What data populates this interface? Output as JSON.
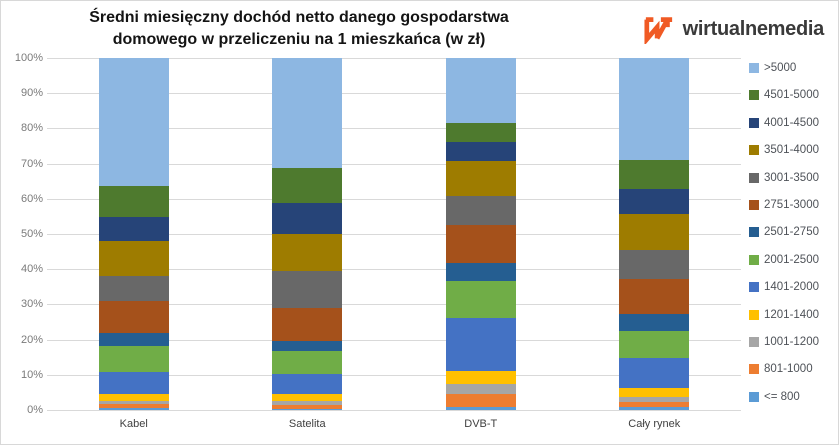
{
  "title": {
    "line1": "Średni miesięczny dochód netto danego gospodarstwa",
    "line2": "domowego w przeliczeniu na 1 mieszkańca (w zł)"
  },
  "brand": {
    "name": "wirtualnemedia",
    "logo_color": "#f05a24",
    "text_color": "#3a3a3a"
  },
  "chart_data": {
    "type": "bar",
    "stacked": true,
    "percent_stacked": true,
    "grid": true,
    "legend_position": "right",
    "ylim": [
      0,
      100
    ],
    "y_ticks": [
      "100%",
      "90%",
      "80%",
      "70%",
      "60%",
      "50%",
      "40%",
      "30%",
      "20%",
      "10%",
      "0%"
    ],
    "categories": [
      "Kabel",
      "Satelita",
      "DVB-T",
      "Cały rynek"
    ],
    "series": [
      {
        "name": "<= 800",
        "color": "#5b9bd5",
        "values": [
          0.7,
          0.4,
          0.9,
          0.9
        ]
      },
      {
        "name": "801-1000",
        "color": "#ed7d31",
        "values": [
          0.9,
          1.0,
          3.6,
          1.4
        ]
      },
      {
        "name": "1001-1200",
        "color": "#a6a6a6",
        "values": [
          0.9,
          1.2,
          2.8,
          1.5
        ]
      },
      {
        "name": "1201-1400",
        "color": "#ffc000",
        "values": [
          2.0,
          1.9,
          3.8,
          2.4
        ]
      },
      {
        "name": "1401-2000",
        "color": "#4472c4",
        "values": [
          6.3,
          5.6,
          15.1,
          8.7
        ]
      },
      {
        "name": "2001-2500",
        "color": "#70ad47",
        "values": [
          7.5,
          6.7,
          10.4,
          7.7
        ]
      },
      {
        "name": "2501-2750",
        "color": "#255e91",
        "values": [
          3.6,
          2.8,
          5.3,
          4.6
        ]
      },
      {
        "name": "2751-3000",
        "color": "#a5511b",
        "values": [
          9.2,
          9.5,
          10.6,
          9.9
        ]
      },
      {
        "name": "3001-3500",
        "color": "#686868",
        "values": [
          7.1,
          10.4,
          8.3,
          8.5
        ]
      },
      {
        "name": "3501-4000",
        "color": "#9e7c00",
        "values": [
          9.7,
          10.6,
          9.9,
          10.2
        ]
      },
      {
        "name": "4001-4500",
        "color": "#264478",
        "values": [
          7.0,
          8.8,
          5.5,
          6.9
        ]
      },
      {
        "name": "4501-5000",
        "color": "#4e7a2e",
        "values": [
          8.7,
          9.9,
          5.4,
          8.5
        ]
      },
      {
        "name": ">5000",
        "color": "#8db7e2",
        "values": [
          36.4,
          31.2,
          18.4,
          28.8
        ]
      }
    ],
    "note": "legend listed top-of-stack first (>5000 ... <= 800)"
  }
}
